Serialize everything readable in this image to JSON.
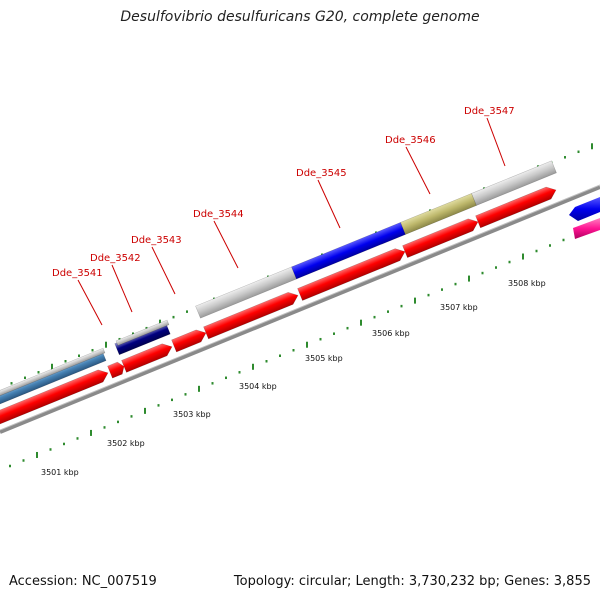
{
  "title": "Desulfovibrio desulfuricans G20, complete genome",
  "accession_text": "Accession: NC_007519",
  "summary_text": "Topology: circular; Length: 3,730,232 bp; Genes: 3,855",
  "colors": {
    "gene_label": "#cc0000",
    "forward_gene": "#ff0000",
    "tick": "#2e8b2e",
    "backbone": "#808080",
    "blue_feature": "#0000ee",
    "navy_feature": "#000080",
    "steelblue_feature": "#4682b4",
    "gray_feature": "#c8c8c8",
    "olive_feature": "#bdb76b",
    "pink_feature": "#ff1493"
  },
  "gene_labels": [
    {
      "name": "Dde_3541"
    },
    {
      "name": "Dde_3542"
    },
    {
      "name": "Dde_3543"
    },
    {
      "name": "Dde_3544"
    },
    {
      "name": "Dde_3545"
    },
    {
      "name": "Dde_3546"
    },
    {
      "name": "Dde_3547"
    }
  ],
  "kbp_labels": [
    {
      "text": "3501 kbp"
    },
    {
      "text": "3502 kbp"
    },
    {
      "text": "3503 kbp"
    },
    {
      "text": "3504 kbp"
    },
    {
      "text": "3505 kbp"
    },
    {
      "text": "3506 kbp"
    },
    {
      "text": "3507 kbp"
    },
    {
      "text": "3508 kbp"
    }
  ]
}
